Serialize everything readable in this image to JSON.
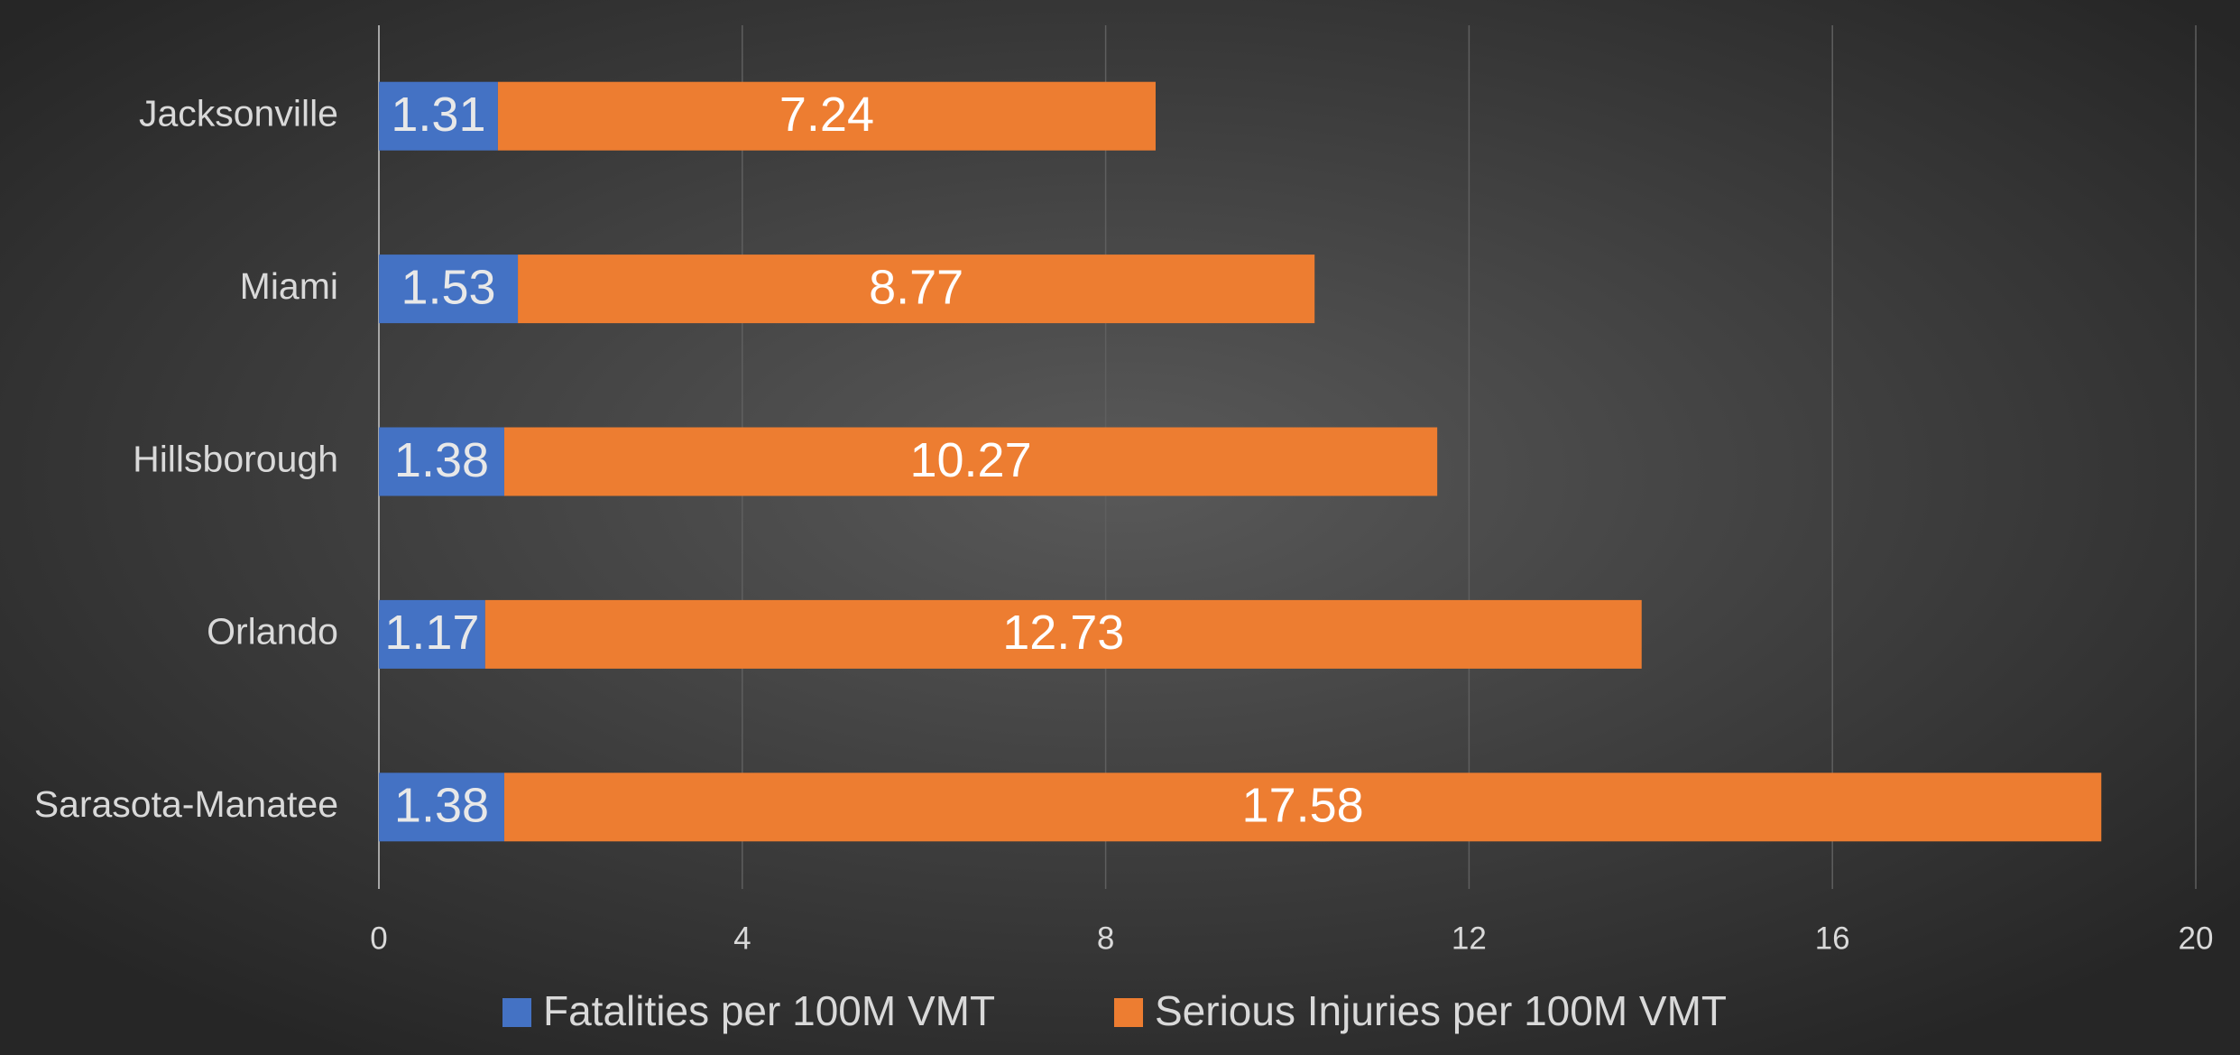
{
  "chart_data": {
    "type": "stacked_barh",
    "categories": [
      "Jacksonville",
      "Miami",
      "Hillsborough",
      "Orlando",
      "Sarasota-Manatee"
    ],
    "series": [
      {
        "name": "Fatalities per 100M VMT",
        "color": "#4472c4",
        "values": [
          1.31,
          1.53,
          1.38,
          1.17,
          1.38
        ]
      },
      {
        "name": "Serious Injuries per 100M VMT",
        "color": "#ed7d31",
        "values": [
          7.24,
          8.77,
          10.27,
          12.73,
          17.58
        ]
      }
    ],
    "xlim": [
      0,
      20
    ],
    "xticks": [
      0,
      4,
      8,
      12,
      16,
      20
    ],
    "grid": true,
    "legend": "bottom"
  }
}
